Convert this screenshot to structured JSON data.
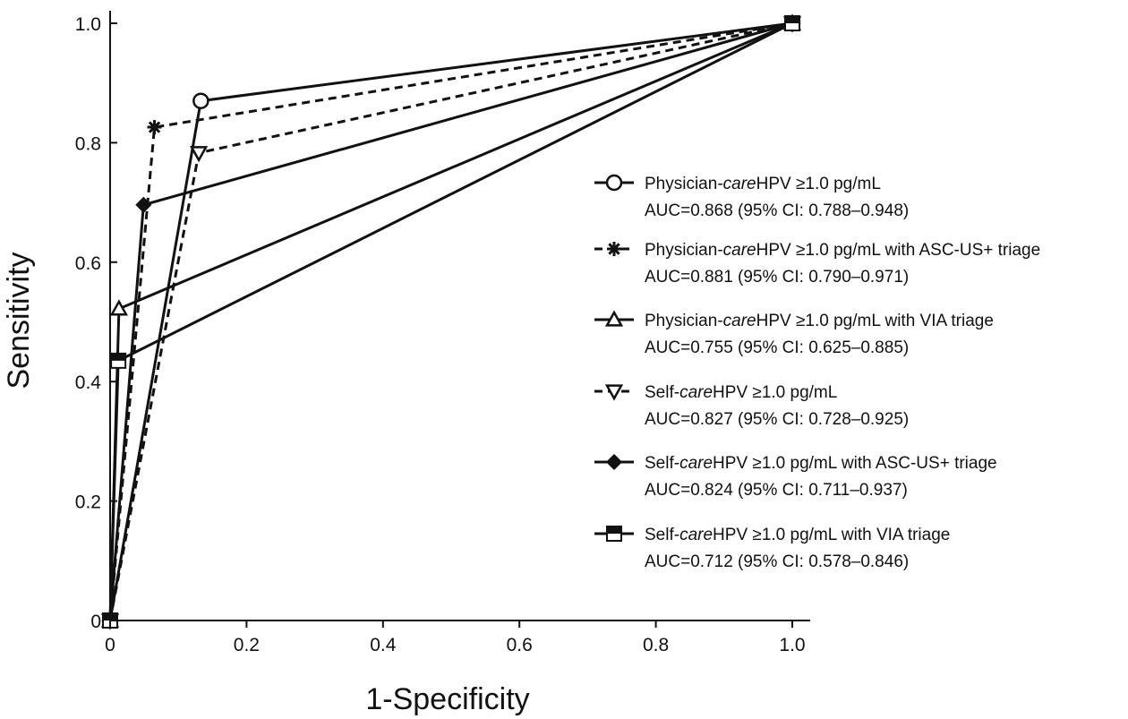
{
  "chart_data": {
    "type": "line",
    "title": "",
    "xlabel": "1-Specificity",
    "ylabel": "Sensitivity",
    "xlim": [
      0,
      1.0
    ],
    "ylim": [
      0,
      1.0
    ],
    "x_ticks": [
      0,
      0.2,
      0.4,
      0.6,
      0.8,
      1.0
    ],
    "x_tick_labels": [
      "0",
      "0.2",
      "0.4",
      "0.6",
      "0.8",
      "1.0"
    ],
    "y_ticks": [
      0,
      0.2,
      0.4,
      0.6,
      0.8,
      1.0
    ],
    "y_tick_labels": [
      "0",
      "0.2",
      "0.4",
      "0.6",
      "0.8",
      "1.0"
    ],
    "grid": false,
    "legend_position": "right",
    "series": [
      {
        "label_prefix": "Physician-",
        "label_italic": "care",
        "label_suffix": "HPV ≥1.0 pg/mL",
        "auc": "AUC=0.868 (95% CI: 0.788–0.948)",
        "marker": "circle-open",
        "dash": false,
        "x": [
          0,
          0.133,
          1.0
        ],
        "y": [
          0,
          0.87,
          1.0
        ]
      },
      {
        "label_prefix": "Physician-",
        "label_italic": "care",
        "label_suffix": "HPV ≥1.0 pg/mL with ASC-US+ triage",
        "auc": "AUC=0.881 (95% CI: 0.790–0.971)",
        "marker": "asterisk",
        "dash": true,
        "x": [
          0,
          0.065,
          1.0
        ],
        "y": [
          0,
          0.826,
          1.0
        ]
      },
      {
        "label_prefix": "Physician-",
        "label_italic": "care",
        "label_suffix": "HPV ≥1.0 pg/mL with VIA triage",
        "auc": "AUC=0.755 (95% CI: 0.625–0.885)",
        "marker": "triangle-up-open",
        "dash": false,
        "x": [
          0,
          0.013,
          1.0
        ],
        "y": [
          0,
          0.522,
          1.0
        ]
      },
      {
        "label_prefix": "Self-",
        "label_italic": "care",
        "label_suffix": "HPV ≥1.0 pg/mL",
        "auc": "AUC=0.827 (95% CI: 0.728–0.925)",
        "marker": "triangle-down-open",
        "dash": true,
        "x": [
          0,
          0.13,
          1.0
        ],
        "y": [
          0,
          0.783,
          1.0
        ]
      },
      {
        "label_prefix": "Self-",
        "label_italic": "care",
        "label_suffix": "HPV ≥1.0 pg/mL with ASC-US+ triage",
        "auc": "AUC=0.824 (95% CI: 0.711–0.937)",
        "marker": "diamond-filled",
        "dash": false,
        "x": [
          0,
          0.049,
          1.0
        ],
        "y": [
          0,
          0.696,
          1.0
        ]
      },
      {
        "label_prefix": "Self-",
        "label_italic": "care",
        "label_suffix": "HPV ≥1.0 pg/mL with VIA triage",
        "auc": "AUC=0.712 (95% CI: 0.578–0.846)",
        "marker": "square-half",
        "dash": false,
        "x": [
          0,
          0.012,
          1.0
        ],
        "y": [
          0,
          0.435,
          1.0
        ]
      }
    ]
  }
}
